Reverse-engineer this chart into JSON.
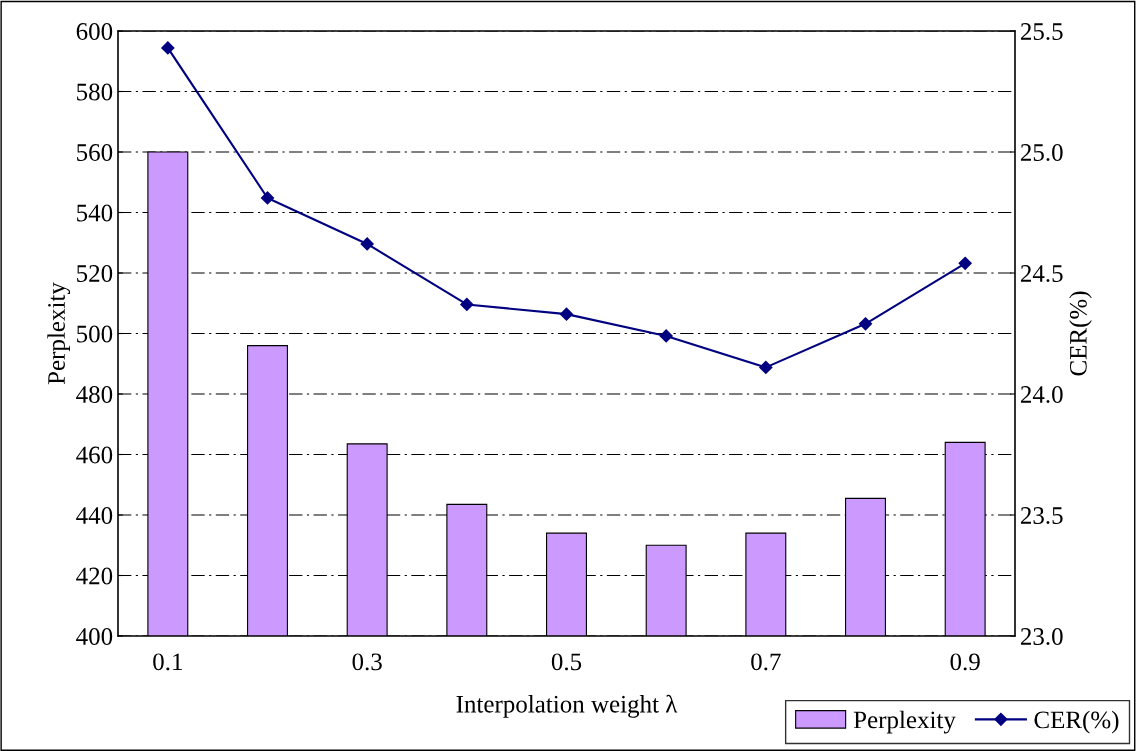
{
  "chart_data": {
    "type": "bar",
    "xlabel": "Interpolation weight λ",
    "ylabel": "Perplexity",
    "y2label": "CER(%)",
    "categories": [
      "0.1",
      null,
      "0.3",
      null,
      "0.5",
      null,
      "0.7",
      null,
      "0.9"
    ],
    "series": [
      {
        "name": "Perplexity",
        "color": "#cc99ff",
        "values": [
          560,
          496,
          463.5,
          443.5,
          434,
          430,
          434,
          445.5,
          464
        ]
      },
      {
        "name": "CER(%)",
        "type": "line",
        "axis": "y2",
        "color": "#000080",
        "marker": "diamond",
        "values": [
          25.43,
          24.81,
          24.62,
          24.37,
          24.33,
          24.24,
          24.11,
          24.29,
          24.54
        ]
      }
    ],
    "ylim": [
      400,
      600
    ],
    "yticks": [
      400,
      420,
      440,
      460,
      480,
      500,
      520,
      540,
      560,
      580,
      600
    ],
    "y2lim": [
      23.0,
      25.5
    ],
    "y2ticks": [
      {
        "value": 23.0,
        "label": "23.0"
      },
      {
        "value": 23.5,
        "label": "23.5"
      },
      {
        "value": 24.0,
        "label": "24.0"
      },
      {
        "value": 24.5,
        "label": "24.5"
      },
      {
        "value": 25.0,
        "label": "25.0"
      },
      {
        "value": 25.5,
        "label": "25.5"
      }
    ],
    "grid": "y",
    "legend": "bottom right"
  }
}
